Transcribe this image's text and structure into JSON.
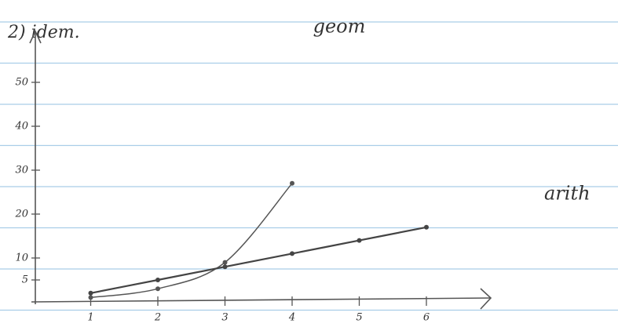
{
  "chart_data": {
    "type": "line",
    "title": "2) idem.",
    "x": [
      1,
      2,
      3,
      4,
      5,
      6
    ],
    "series": [
      {
        "name": "geom",
        "color": "#555555",
        "x": [
          1,
          2,
          3,
          4
        ],
        "values": [
          1,
          3,
          9,
          27
        ]
      },
      {
        "name": "arith",
        "color": "#444444",
        "x": [
          1,
          2,
          3,
          4,
          5,
          6
        ],
        "values": [
          2,
          5,
          8,
          11,
          14,
          17
        ]
      }
    ],
    "xlim": [
      0,
      7
    ],
    "xticks": [
      1,
      2,
      3,
      4,
      5,
      6
    ],
    "ylim": [
      0,
      60
    ],
    "yticks": [
      5,
      10,
      20,
      30,
      40,
      50
    ],
    "paper_lines_color": "#a9cde8"
  }
}
